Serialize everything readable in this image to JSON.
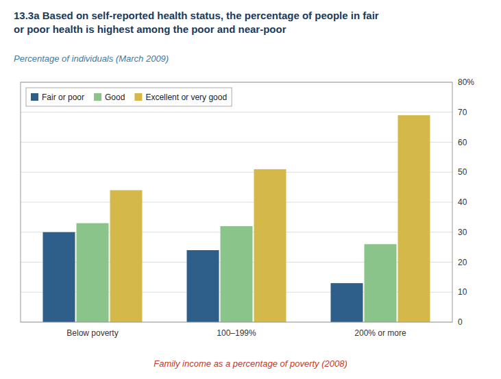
{
  "chart_data": {
    "type": "bar",
    "title": "13.3a  Based on self-reported health status, the percentage of people in fair\nor poor health is highest among the poor and near-poor",
    "subtitle": "Percentage of individuals (March 2009)",
    "xlabel": "Family income as a percentage of poverty (2008)",
    "categories": [
      "Below poverty",
      "100–199%",
      "200% or more"
    ],
    "series": [
      {
        "name": "Fair or poor",
        "values": [
          30,
          24,
          13
        ],
        "color": "#2e5f8a"
      },
      {
        "name": "Good",
        "values": [
          33,
          32,
          26
        ],
        "color": "#8bc48a"
      },
      {
        "name": "Excellent or very good",
        "values": [
          44,
          51,
          69
        ],
        "color": "#d4b84a"
      }
    ],
    "ylim": [
      0,
      80
    ],
    "yticks": [
      0,
      10,
      20,
      30,
      40,
      50,
      60,
      70,
      {
        "value": 80,
        "label": "80%"
      }
    ],
    "grid": true,
    "legend": "upper left"
  }
}
